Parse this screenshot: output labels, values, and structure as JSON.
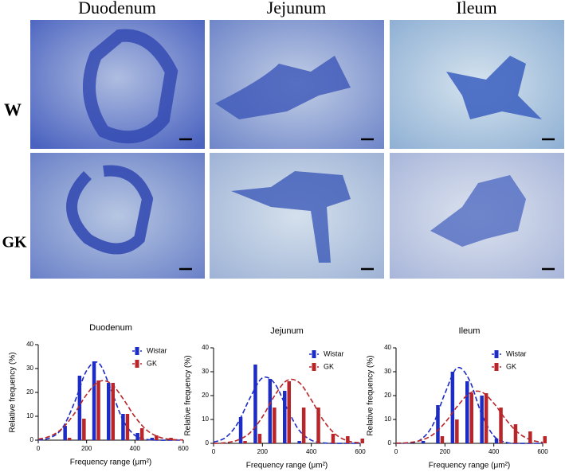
{
  "micrographs": {
    "columns": [
      "Duodenum",
      "Jejunum",
      "Ileum"
    ],
    "rows": [
      "W",
      "GK"
    ]
  },
  "chart_data": [
    {
      "type": "bar",
      "title": "Duodenum",
      "xlabel": "Frequency range (μm²)",
      "ylabel": "Relative frequency (%)",
      "x": [
        120,
        180,
        240,
        300,
        360,
        420,
        480,
        540
      ],
      "xlim": [
        0,
        600
      ],
      "xticks": [
        0,
        200,
        400,
        600
      ],
      "ylim": [
        0,
        40
      ],
      "yticks": [
        0,
        10,
        20,
        30,
        40
      ],
      "legend": "upper right",
      "fit_x": [
        0,
        50,
        100,
        150,
        200,
        250,
        300,
        350,
        400,
        450,
        500,
        550,
        600
      ],
      "series": [
        {
          "name": "Wistar",
          "color": "#1d2cc4",
          "values": [
            6,
            27,
            33,
            24,
            11,
            3,
            1,
            0
          ],
          "fit_values": [
            0.1,
            1.0,
            5.1,
            15.8,
            29.1,
            32.3,
            21.4,
            8.5,
            2.0,
            0.3,
            0,
            0,
            0
          ]
        },
        {
          "name": "GK",
          "color": "#b8262a",
          "values": [
            1,
            9,
            25,
            24,
            11,
            5,
            2,
            1
          ],
          "fit_values": [
            0.4,
            1.7,
            5.0,
            11.2,
            19.1,
            24.5,
            23.8,
            17.5,
            9.8,
            4.1,
            1.3,
            0.3,
            0.1
          ]
        }
      ]
    },
    {
      "type": "bar",
      "title": "Jejunum",
      "xlabel": "Frequency range (μm²)",
      "ylabel": "Relative frequency (%)",
      "x": [
        120,
        180,
        240,
        300,
        360,
        420,
        480,
        540,
        600
      ],
      "xlim": [
        0,
        600
      ],
      "xticks": [
        0,
        200,
        400,
        600
      ],
      "ylim": [
        0,
        40
      ],
      "yticks": [
        0,
        10,
        20,
        30,
        40
      ],
      "legend": "upper right",
      "fit_x": [
        0,
        50,
        100,
        150,
        200,
        250,
        300,
        350,
        400,
        450,
        500,
        550,
        600
      ],
      "series": [
        {
          "name": "Wistar",
          "color": "#1d2cc4",
          "values": [
            11,
            33,
            27,
            22,
            1,
            0,
            0,
            0,
            0
          ],
          "fit_values": [
            0.5,
            2.5,
            8.6,
            19.2,
            27.4,
            25.1,
            14.7,
            5.5,
            1.3,
            0.2,
            0,
            0,
            0
          ]
        },
        {
          "name": "GK",
          "color": "#b8262a",
          "values": [
            1,
            4,
            15,
            26,
            15,
            15,
            4,
            3,
            2
          ],
          "fit_values": [
            0,
            0.3,
            1.4,
            4.5,
            11.1,
            20.0,
            26.3,
            25.5,
            18.2,
            9.5,
            3.7,
            1.0,
            0.2
          ]
        }
      ]
    },
    {
      "type": "bar",
      "title": "Ileum",
      "xlabel": "Frequency range (μm²)",
      "ylabel": "Relative frequency (%)",
      "x": [
        120,
        180,
        240,
        300,
        360,
        420,
        480,
        540,
        600
      ],
      "xlim": [
        0,
        600
      ],
      "xticks": [
        0,
        200,
        400,
        600
      ],
      "ylim": [
        0,
        40
      ],
      "yticks": [
        0,
        10,
        20,
        30,
        40
      ],
      "legend": "upper right",
      "fit_x": [
        0,
        50,
        100,
        150,
        200,
        250,
        300,
        350,
        400,
        450,
        500,
        550,
        600
      ],
      "series": [
        {
          "name": "Wistar",
          "color": "#1d2cc4",
          "values": [
            1,
            16,
            30,
            26,
            20,
            2,
            0,
            0,
            0
          ],
          "fit_values": [
            0,
            0.2,
            1.5,
            7.6,
            20.9,
            31.6,
            26.5,
            12.3,
            3.1,
            0.4,
            0,
            0,
            0
          ]
        },
        {
          "name": "GK",
          "color": "#b8262a",
          "values": [
            0,
            3,
            10,
            21,
            21,
            15,
            8,
            5,
            3
          ],
          "fit_values": [
            0.1,
            0.3,
            1.2,
            3.6,
            8.6,
            15.4,
            20.9,
            21.5,
            16.8,
            9.9,
            4.4,
            1.5,
            0.4
          ]
        }
      ]
    }
  ]
}
